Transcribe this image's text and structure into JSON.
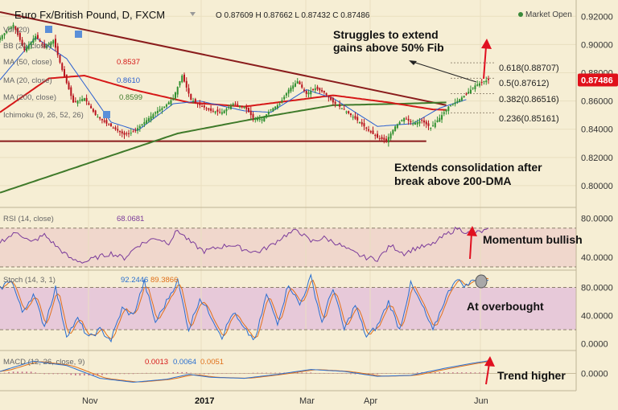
{
  "header": {
    "title": "Euro Fx/British Pound, D, FXCM",
    "ohlc": "O 0.87609  H 0.87662  L 0.87432  C 0.87486",
    "market_status": "Market Open",
    "market_status_color": "#3a8a3a"
  },
  "indicators": {
    "vol": "Vol (20)",
    "bb": "BB (20, close)",
    "ma50": "MA (50, close)",
    "ma50_value": "0.8537",
    "ma20": "MA (20, close)",
    "ma20_value": "0.8610",
    "ma200": "MA (200, close)",
    "ma200_value": "0.8599",
    "ichimoku": "Ichimoku (9, 26, 52, 26)",
    "rsi": "RSI (14, close)",
    "rsi_value": "68.0681",
    "stoch": "Stoch (14, 3, 1)",
    "stoch_k": "92.2446",
    "stoch_d": "89.3866",
    "macd": "MACD (12, 26, close, 9)",
    "macd_hist": "0.0013",
    "macd_line": "0.0064",
    "macd_signal": "0.0051"
  },
  "annotations": {
    "struggle_line1": "Struggles to extend",
    "struggle_line2": "gains above 50% Fib",
    "consolidation_line1": "Extends consolidation after",
    "consolidation_line2": "break above 200-DMA",
    "momentum": "Momentum bullish",
    "overbought": "At overbought",
    "trend": "Trend higher"
  },
  "fib_levels": [
    {
      "label": "0.618(0.88707)",
      "value": 0.88707
    },
    {
      "label": "0.5(0.87612)",
      "value": 0.87612
    },
    {
      "label": "0.382(0.86516)",
      "value": 0.86516
    },
    {
      "label": "0.236(0.85161)",
      "value": 0.85161
    }
  ],
  "last_price": {
    "label": "0.87486",
    "value": 0.87486,
    "color": "#e0101a"
  },
  "colors": {
    "up": "#2f8f2f",
    "down": "#b8141e",
    "ma20": "#2a5fd0",
    "ma50": "#d61818",
    "ma200": "#3f7a2a",
    "trend": "#8a1c1c",
    "rsi": "#7a3a9a",
    "stoch_k": "#2a6fd0",
    "stoch_d": "#e0701a",
    "macd": "#2a6fd0",
    "signal": "#e0701a",
    "arrow": "#e01020"
  },
  "chart_data": [
    {
      "type": "candlestick",
      "title": "Euro Fx/British Pound, D, FXCM",
      "x_ticks": [
        "Nov",
        "2017",
        "Mar",
        "Apr",
        "Jun"
      ],
      "y_ticks": [
        "0.92000",
        "0.90000",
        "0.88000",
        "0.86000",
        "0.84000",
        "0.82000",
        "0.80000"
      ],
      "ylim": [
        0.788,
        0.927
      ],
      "close_anchors": [
        [
          0,
          0.905
        ],
        [
          6,
          0.914
        ],
        [
          11,
          0.896
        ],
        [
          16,
          0.906
        ],
        [
          20,
          0.898
        ],
        [
          24,
          0.903
        ],
        [
          28,
          0.882
        ],
        [
          33,
          0.859
        ],
        [
          38,
          0.862
        ],
        [
          43,
          0.85
        ],
        [
          48,
          0.844
        ],
        [
          52,
          0.84
        ],
        [
          56,
          0.836
        ],
        [
          60,
          0.838
        ],
        [
          65,
          0.845
        ],
        [
          70,
          0.852
        ],
        [
          74,
          0.856
        ],
        [
          78,
          0.862
        ],
        [
          82,
          0.878
        ],
        [
          86,
          0.861
        ],
        [
          90,
          0.857
        ],
        [
          95,
          0.853
        ],
        [
          100,
          0.852
        ],
        [
          105,
          0.858
        ],
        [
          110,
          0.856
        ],
        [
          114,
          0.848
        ],
        [
          118,
          0.847
        ],
        [
          122,
          0.854
        ],
        [
          126,
          0.858
        ],
        [
          130,
          0.868
        ],
        [
          134,
          0.874
        ],
        [
          138,
          0.865
        ],
        [
          142,
          0.869
        ],
        [
          146,
          0.866
        ],
        [
          150,
          0.859
        ],
        [
          154,
          0.855
        ],
        [
          158,
          0.85
        ],
        [
          162,
          0.845
        ],
        [
          166,
          0.839
        ],
        [
          170,
          0.834
        ],
        [
          174,
          0.832
        ],
        [
          178,
          0.842
        ],
        [
          182,
          0.848
        ],
        [
          186,
          0.844
        ],
        [
          190,
          0.846
        ],
        [
          194,
          0.841
        ],
        [
          198,
          0.848
        ],
        [
          202,
          0.856
        ],
        [
          206,
          0.86
        ],
        [
          210,
          0.865
        ],
        [
          214,
          0.871
        ],
        [
          218,
          0.874
        ],
        [
          220,
          0.8749
        ]
      ],
      "trendlines": [
        {
          "name": "Descending resistance",
          "points": [
            [
              0,
              0.923
            ],
            [
              201,
              0.857
            ]
          ]
        },
        {
          "name": "Horizontal support",
          "points": [
            [
              0,
              0.8315
            ],
            [
              192,
              0.8315
            ]
          ]
        }
      ],
      "ma200_anchors": [
        [
          0,
          0.795
        ],
        [
          40,
          0.816
        ],
        [
          80,
          0.837
        ],
        [
          120,
          0.849
        ],
        [
          150,
          0.857
        ],
        [
          180,
          0.858
        ],
        [
          201,
          0.859
        ]
      ],
      "ma50_anchors": [
        [
          0,
          0.852
        ],
        [
          22,
          0.876
        ],
        [
          38,
          0.878
        ],
        [
          60,
          0.868
        ],
        [
          85,
          0.859
        ],
        [
          110,
          0.856
        ],
        [
          135,
          0.861
        ],
        [
          150,
          0.864
        ],
        [
          175,
          0.859
        ],
        [
          195,
          0.854
        ],
        [
          201,
          0.8537
        ]
      ],
      "ma20_anchors": [
        [
          0,
          0.875
        ],
        [
          16,
          0.905
        ],
        [
          30,
          0.89
        ],
        [
          50,
          0.845
        ],
        [
          62,
          0.839
        ],
        [
          78,
          0.858
        ],
        [
          90,
          0.86
        ],
        [
          110,
          0.853
        ],
        [
          122,
          0.852
        ],
        [
          138,
          0.868
        ],
        [
          150,
          0.862
        ],
        [
          170,
          0.842
        ],
        [
          186,
          0.844
        ],
        [
          198,
          0.855
        ],
        [
          210,
          0.861
        ]
      ]
    },
    {
      "type": "line",
      "title": "RSI (14, close)",
      "y_ticks": [
        "80.0000",
        "40.0000"
      ],
      "ylim": [
        30,
        88
      ],
      "guides": [
        70,
        30
      ],
      "anchors": [
        [
          0,
          56
        ],
        [
          8,
          66
        ],
        [
          14,
          55
        ],
        [
          20,
          63
        ],
        [
          26,
          50
        ],
        [
          32,
          38
        ],
        [
          38,
          35
        ],
        [
          44,
          40
        ],
        [
          50,
          44
        ],
        [
          56,
          39
        ],
        [
          62,
          52
        ],
        [
          70,
          60
        ],
        [
          76,
          55
        ],
        [
          80,
          68
        ],
        [
          86,
          55
        ],
        [
          92,
          46
        ],
        [
          98,
          50
        ],
        [
          104,
          53
        ],
        [
          110,
          48
        ],
        [
          116,
          45
        ],
        [
          122,
          52
        ],
        [
          128,
          62
        ],
        [
          134,
          68
        ],
        [
          140,
          56
        ],
        [
          146,
          60
        ],
        [
          152,
          54
        ],
        [
          158,
          46
        ],
        [
          164,
          40
        ],
        [
          170,
          38
        ],
        [
          176,
          52
        ],
        [
          182,
          44
        ],
        [
          188,
          50
        ],
        [
          194,
          52
        ],
        [
          200,
          62
        ],
        [
          206,
          70
        ],
        [
          212,
          64
        ],
        [
          220,
          68
        ]
      ]
    },
    {
      "type": "line",
      "title": "Stoch (14, 3, 1)",
      "y_ticks": [
        "80.0000",
        "40.0000",
        "0.0000"
      ],
      "ylim": [
        -5,
        100
      ],
      "guides": [
        80,
        20
      ],
      "k_anchors": [
        [
          0,
          78
        ],
        [
          5,
          92
        ],
        [
          10,
          45
        ],
        [
          15,
          70
        ],
        [
          20,
          25
        ],
        [
          25,
          80
        ],
        [
          30,
          12
        ],
        [
          35,
          35
        ],
        [
          40,
          8
        ],
        [
          45,
          20
        ],
        [
          50,
          5
        ],
        [
          55,
          50
        ],
        [
          60,
          40
        ],
        [
          65,
          88
        ],
        [
          70,
          30
        ],
        [
          75,
          60
        ],
        [
          80,
          90
        ],
        [
          85,
          20
        ],
        [
          90,
          65
        ],
        [
          95,
          40
        ],
        [
          100,
          10
        ],
        [
          105,
          45
        ],
        [
          110,
          20
        ],
        [
          115,
          5
        ],
        [
          120,
          70
        ],
        [
          125,
          30
        ],
        [
          130,
          85
        ],
        [
          135,
          55
        ],
        [
          140,
          95
        ],
        [
          145,
          30
        ],
        [
          150,
          80
        ],
        [
          155,
          20
        ],
        [
          160,
          55
        ],
        [
          165,
          10
        ],
        [
          170,
          25
        ],
        [
          175,
          60
        ],
        [
          180,
          20
        ],
        [
          185,
          85
        ],
        [
          190,
          55
        ],
        [
          195,
          18
        ],
        [
          200,
          60
        ],
        [
          205,
          92
        ],
        [
          210,
          82
        ],
        [
          215,
          95
        ],
        [
          220,
          92
        ]
      ],
      "d_offset": 2
    },
    {
      "type": "bar+line",
      "title": "MACD (12, 26, close, 9)",
      "y_ticks": [
        "0.0000"
      ],
      "ylim": [
        -0.008,
        0.01
      ],
      "macd_anchors": [
        [
          0,
          0.001
        ],
        [
          15,
          0.0062
        ],
        [
          30,
          0.004
        ],
        [
          45,
          -0.0025
        ],
        [
          60,
          -0.0045
        ],
        [
          75,
          -0.003
        ],
        [
          85,
          -0.0005
        ],
        [
          95,
          -0.002
        ],
        [
          110,
          -0.0025
        ],
        [
          125,
          -0.0005
        ],
        [
          140,
          0.002
        ],
        [
          155,
          0.001
        ],
        [
          170,
          -0.0015
        ],
        [
          185,
          -0.001
        ],
        [
          200,
          0.0025
        ],
        [
          212,
          0.005
        ],
        [
          220,
          0.0064
        ]
      ],
      "signal_lag": 5
    }
  ]
}
